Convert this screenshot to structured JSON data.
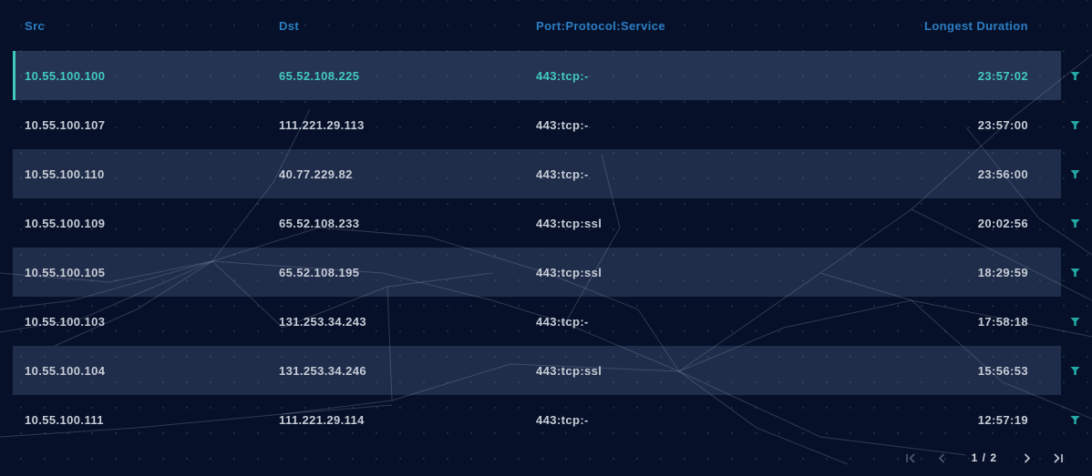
{
  "table": {
    "columns": [
      {
        "key": "src",
        "label": "Src"
      },
      {
        "key": "dst",
        "label": "Dst"
      },
      {
        "key": "port",
        "label": "Port:Protocol:Service"
      },
      {
        "key": "duration",
        "label": "Longest Duration"
      }
    ],
    "rows": [
      {
        "src": "10.55.100.100",
        "dst": "65.52.108.225",
        "port": "443:tcp:-",
        "duration": "23:57:02",
        "selected": true
      },
      {
        "src": "10.55.100.107",
        "dst": "111.221.29.113",
        "port": "443:tcp:-",
        "duration": "23:57:00",
        "selected": false
      },
      {
        "src": "10.55.100.110",
        "dst": "40.77.229.82",
        "port": "443:tcp:-",
        "duration": "23:56:00",
        "selected": false
      },
      {
        "src": "10.55.100.109",
        "dst": "65.52.108.233",
        "port": "443:tcp:ssl",
        "duration": "20:02:56",
        "selected": false
      },
      {
        "src": "10.55.100.105",
        "dst": "65.52.108.195",
        "port": "443:tcp:ssl",
        "duration": "18:29:59",
        "selected": false
      },
      {
        "src": "10.55.100.103",
        "dst": "131.253.34.243",
        "port": "443:tcp:-",
        "duration": "17:58:18",
        "selected": false
      },
      {
        "src": "10.55.100.104",
        "dst": "131.253.34.246",
        "port": "443:tcp:ssl",
        "duration": "15:56:53",
        "selected": false
      },
      {
        "src": "10.55.100.111",
        "dst": "111.221.29.114",
        "port": "443:tcp:-",
        "duration": "12:57:19",
        "selected": false
      }
    ],
    "row_filter_icon": "filter-funnel"
  },
  "pagination": {
    "page_label": "1 / 2",
    "first_enabled": false,
    "prev_enabled": false,
    "next_enabled": true,
    "last_enabled": true
  },
  "colors": {
    "background": "#061129",
    "header_text": "#2d7dc3",
    "row_text": "#c6ccd6",
    "selected_text": "#43cabe",
    "selected_accent": "#3fc8bd",
    "filter_icon": "#24a8a4",
    "pagination_disabled": "#4d5a72"
  }
}
